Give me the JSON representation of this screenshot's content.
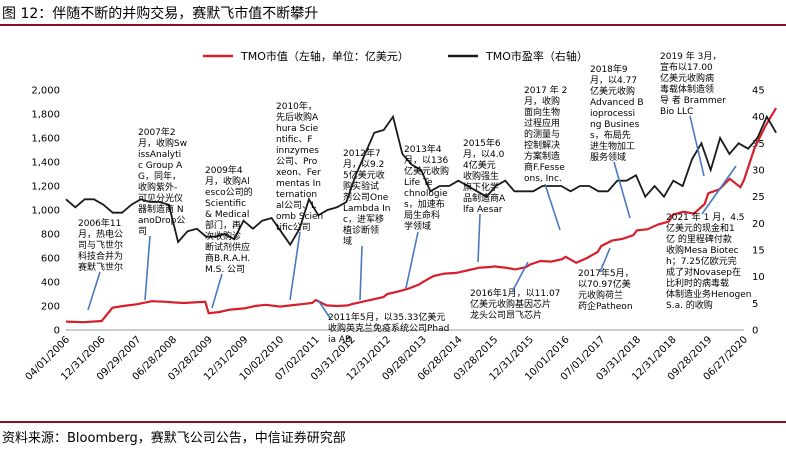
{
  "figure": {
    "title": "图 12：伴随不断的并购交易，赛默飞市值不断攀升",
    "source": "资料来源：Bloomberg，赛默飞公司公告，中信证券研究部"
  },
  "chart_data": {
    "type": "line",
    "title": "图 12：伴随不断的并购交易，赛默飞市值不断攀升",
    "categories": [
      "04/01/2006",
      "12/31/2006",
      "09/29/2007",
      "06/28/2008",
      "03/28/2009",
      "12/31/2009",
      "10/02/2010",
      "07/02/2011",
      "03/31/2012",
      "12/31/2012",
      "09/28/2013",
      "06/28/2014",
      "03/28/2015",
      "12/31/2015",
      "10/01/2016",
      "07/01/2017",
      "03/31/2018",
      "12/31/2018",
      "09/28/2019",
      "06/27/2020"
    ],
    "left_axis": {
      "label": "TMO市值（左轴，单位：亿美元）",
      "range": [
        0,
        2000
      ],
      "ticks": [
        0,
        200,
        400,
        600,
        800,
        1000,
        1200,
        1400,
        1600,
        1800,
        2000
      ],
      "tick_labels": [
        "0",
        "200",
        "400",
        "600",
        "800",
        "1,000",
        "1,200",
        "1,400",
        "1,600",
        "1,800",
        "2,000"
      ]
    },
    "right_axis": {
      "label": "TMO市盈率（右轴）",
      "range": [
        0,
        45
      ],
      "ticks": [
        0,
        5,
        10,
        15,
        20,
        25,
        30,
        35,
        40,
        45
      ]
    },
    "series": [
      {
        "name": "TMO市值（左轴，单位：亿美元）",
        "axis": "left",
        "color": "#d71f2b",
        "x": [
          0,
          0.5,
          1,
          1.3,
          1.6,
          2,
          2.4,
          2.8,
          3,
          3.3,
          3.6,
          3.9,
          4,
          4.3,
          4.6,
          5,
          5.3,
          5.6,
          6,
          6.3,
          6.6,
          6.9,
          7,
          7.3,
          7.6,
          7.9,
          8,
          8.3,
          8.6,
          8.9,
          9,
          9.3,
          9.6,
          9.9,
          10,
          10.3,
          10.6,
          10.9,
          11,
          11.3,
          11.6,
          11.9,
          12,
          12.3,
          12.6,
          12.9,
          13,
          13.3,
          13.6,
          13.9,
          14,
          14.3,
          14.6,
          14.9,
          15,
          15.3,
          15.6,
          15.9,
          16,
          16.3,
          16.6,
          16.9,
          17,
          17.3,
          17.6,
          17.9,
          18,
          18.3,
          18.6,
          18.9,
          19,
          19.3,
          19.6,
          19.9
        ],
        "values": [
          70,
          65,
          75,
          185,
          200,
          215,
          240,
          235,
          230,
          225,
          230,
          235,
          140,
          150,
          170,
          180,
          200,
          210,
          195,
          205,
          215,
          225,
          250,
          205,
          200,
          205,
          215,
          235,
          255,
          275,
          300,
          320,
          345,
          380,
          400,
          450,
          470,
          475,
          480,
          500,
          520,
          525,
          530,
          520,
          505,
          525,
          545,
          575,
          570,
          590,
          610,
          560,
          600,
          650,
          700,
          745,
          760,
          790,
          830,
          840,
          880,
          905,
          960,
          985,
          970,
          1050,
          1140,
          1170,
          1260,
          1190,
          1250,
          1520,
          1700,
          1850
        ]
      },
      {
        "name": "TMO市盈率（右轴）",
        "axis": "right",
        "color": "#1a1a1a",
        "values_pe": [
          24.5,
          23,
          24.5,
          24.5,
          23.5,
          22,
          22,
          23.5,
          24.5,
          24,
          24,
          23.5,
          16.5,
          18.5,
          19,
          17.5,
          17.5,
          18,
          17,
          20.5,
          19,
          20.5,
          21,
          18.5,
          16,
          19,
          24.5,
          21.5,
          22.5,
          23,
          24,
          29,
          33,
          37,
          37.5,
          40,
          33,
          31,
          30,
          26,
          27,
          27,
          28,
          27,
          26,
          25,
          27,
          28,
          26,
          26,
          26,
          27,
          27,
          27,
          26,
          27,
          27,
          26,
          26,
          28,
          28,
          29,
          25,
          27,
          25,
          28,
          27,
          32,
          35,
          30,
          36,
          33,
          35,
          34,
          36,
          40,
          37
        ]
      }
    ]
  },
  "annotations": {
    "a1": [
      "2006年11",
      "月，热电公",
      "司与飞世尔",
      "科技合并为",
      "赛默飞世尔"
    ],
    "a2": [
      "2007年2",
      "月，收购Sw",
      "issAnalyti",
      "c Group A",
      "G，同年，",
      "收购紫外-",
      "可见分光仪",
      "器制造商 N",
      "anoDrop公",
      "司"
    ],
    "a3": [
      "2009年4",
      "月，收购Al",
      "esco公司的",
      "Scientific",
      "& Medical",
      "部门，再",
      "次收购诊",
      "断试剂供应",
      "商B.R.A.H.",
      "M.S. 公司"
    ],
    "a4": [
      "2010年，",
      "先后收购A",
      "hura Scie",
      "ntific、F",
      "innzymes",
      "公司、Pro",
      "xeon、Fer",
      "mentas In",
      "ternation",
      "al公司、L",
      "omb Scien",
      "tific公司"
    ],
    "a5": [
      "2012年7",
      "月，以9.2",
      "5亿美元收",
      "购实验试",
      "剂公司One",
      "Lambda In",
      "c，进军移",
      "植诊断领",
      "域"
    ],
    "a6": [
      "2013年4",
      "月，以136",
      "亿美元收购",
      "Life Te",
      "chnologie",
      "s，加速布",
      "局生命科",
      "学领域"
    ],
    "a7": [
      "2015年6",
      "月，以4.0",
      "4亿美元",
      "收购强生",
      "旗下化学",
      "品制造商A",
      "lfa Aesar"
    ],
    "a8": [
      "2017 年 2",
      "月，收购",
      "面向生物",
      "过程应用",
      "的测量与",
      "控制解决",
      "方案制造",
      "商F.Fesse",
      "ons, Inc."
    ],
    "a9": [
      "2018年9",
      "月，以4.77",
      "亿美元收购",
      "Advanced B",
      "ioprocessi",
      "ng Busines",
      "s，布局先",
      "进生物加工",
      "服务领域"
    ],
    "a10": [
      "2019 年 3月，",
      "宣布以17.00",
      "亿美元收购病",
      "毒载体制造领",
      "导 者 Brammer",
      "Bio LLC"
    ],
    "a11": [
      "2011年5月，以35.33亿美元",
      "收购英克兰免疫系统公司Phad",
      "ia AB"
    ],
    "a12": [
      "2016年1月，以11.07",
      "亿美元收购基因芯片",
      "龙头公司昂飞芯片"
    ],
    "a13": [
      "2017年5月，",
      "以70.97亿美",
      "元收购荷兰",
      "药企Patheon"
    ],
    "a14": [
      "2021 年 1 月，4.5",
      "亿美元的现金和1",
      "亿 的里程碑付款",
      "收购Mesa Biotec",
      "h；7.25亿欧元完",
      "成了对Novasep在",
      "比利时的病毒载",
      "体制造业务Henogen",
      "S.a. 的收购"
    ]
  }
}
